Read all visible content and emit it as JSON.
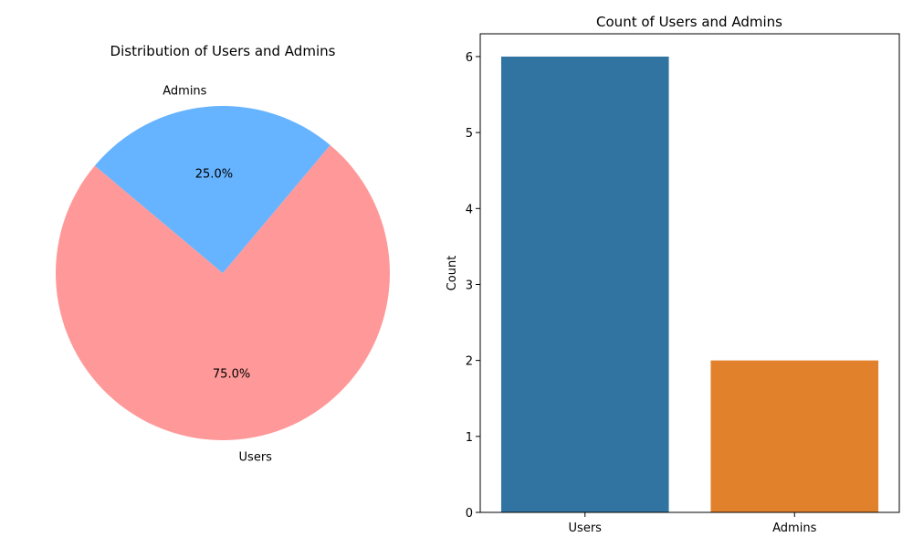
{
  "chart_data": [
    {
      "type": "pie",
      "title": "Distribution of Users and Admins",
      "labels": [
        "Users",
        "Admins"
      ],
      "values": [
        75.0,
        25.0
      ],
      "value_labels": [
        "75.0%",
        "25.0%"
      ],
      "colors": [
        "#ff9999",
        "#66b3ff"
      ]
    },
    {
      "type": "bar",
      "title": "Count of Users and Admins",
      "categories": [
        "Users",
        "Admins"
      ],
      "values": [
        6,
        2
      ],
      "colors": [
        "#3274a1",
        "#e1812c"
      ],
      "xlabel": "",
      "ylabel": "Count",
      "ylim": [
        0,
        6.3
      ],
      "yticks": [
        "0",
        "1",
        "2",
        "3",
        "4",
        "5",
        "6"
      ],
      "grid": false
    }
  ]
}
